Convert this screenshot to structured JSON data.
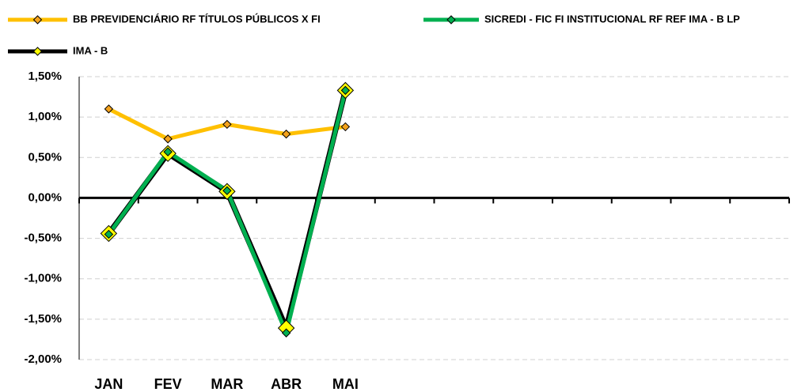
{
  "chart_data": {
    "type": "line",
    "categories": [
      "JAN",
      "FEV",
      "MAR",
      "ABR",
      "MAI",
      null,
      null,
      null,
      null,
      null,
      null,
      null
    ],
    "series": [
      {
        "name": "BB PREVIDENCIÁRIO RF TÍTULOS PÚBLICOS X FI",
        "color": "#ffc000",
        "marker_color": "#f4a21c",
        "values": [
          1.1,
          0.73,
          0.91,
          0.79,
          0.88,
          null,
          null,
          null,
          null,
          null,
          null,
          null
        ]
      },
      {
        "name": "SICREDI - FIC FI INSTITUCIONAL RF REF IMA - B LP",
        "color": "#00b050",
        "marker_color": "#00b050",
        "values": [
          -0.45,
          0.57,
          0.09,
          -1.67,
          1.33,
          null,
          null,
          null,
          null,
          null,
          null,
          null
        ]
      },
      {
        "name": "IMA - B",
        "color": "#000000",
        "marker_color": "#ffff00",
        "values": [
          -0.44,
          0.55,
          0.08,
          -1.61,
          1.33,
          null,
          null,
          null,
          null,
          null,
          null,
          null
        ]
      }
    ],
    "ylim": [
      -2,
      1.5
    ],
    "yticks": [
      {
        "value": -2,
        "label": "-2,00%"
      },
      {
        "value": -1.5,
        "label": "-1,50%"
      },
      {
        "value": -1,
        "label": "-1,00%"
      },
      {
        "value": -0.5,
        "label": "-0,50%"
      },
      {
        "value": 0,
        "label": "0,00%"
      },
      {
        "value": 0.5,
        "label": "0,50%"
      },
      {
        "value": 1,
        "label": "1,00%"
      },
      {
        "value": 1.5,
        "label": "1,50%"
      }
    ],
    "grid": true
  }
}
